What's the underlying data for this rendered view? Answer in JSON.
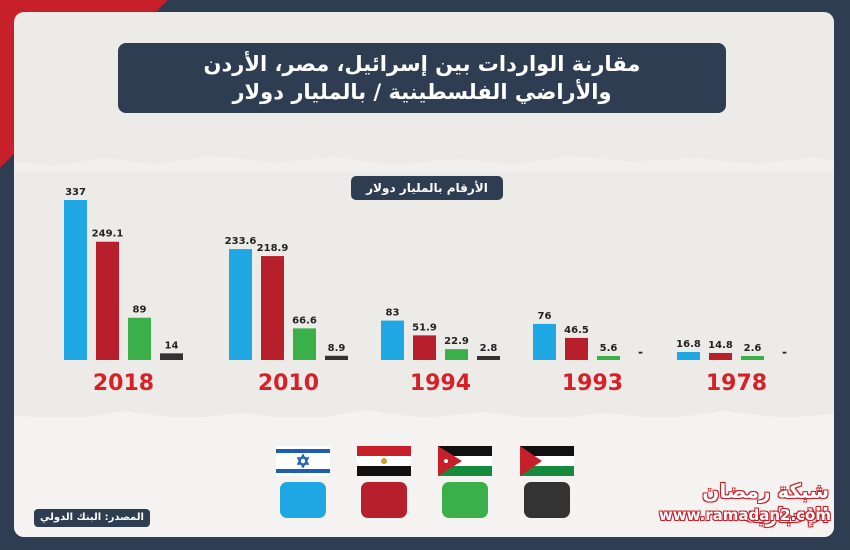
{
  "title": {
    "line1": "مقارنة الواردات بين إسرائيل، مصر، الأردن",
    "line2": "والأراضي الفلسطينية / بالمليار دولار"
  },
  "unit_label": "الأرقام بالمليار دولار",
  "source_label": "المصدر: البنك الدولي",
  "brand": {
    "name": "شبكة رمضان الإخبارية",
    "url": "www.ramadan2.com"
  },
  "colors": {
    "israel": "#1ea7e3",
    "egypt": "#b81f2d",
    "jordan": "#3bb04a",
    "palestine": "#333333",
    "year": "#d72027"
  },
  "chart_data": {
    "type": "bar",
    "categories": [
      "2018",
      "2010",
      "1994",
      "1993",
      "1978"
    ],
    "series": [
      {
        "key": "israel",
        "color": "#1ea7e3",
        "values": [
          337,
          233.6,
          83,
          76,
          16.8
        ],
        "labels": [
          "337",
          "233.6",
          "83",
          "76",
          "16.8"
        ]
      },
      {
        "key": "egypt",
        "color": "#b81f2d",
        "values": [
          249.1,
          218.9,
          51.9,
          46.5,
          14.8
        ],
        "labels": [
          "249.1",
          "218.9",
          "51.9",
          "46.5",
          "14.8"
        ]
      },
      {
        "key": "jordan",
        "color": "#3bb04a",
        "values": [
          89,
          66.6,
          22.9,
          5.6,
          2.6
        ],
        "labels": [
          "89",
          "66.6",
          "22.9",
          "5.6",
          "2.6"
        ]
      },
      {
        "key": "palestine",
        "color": "#333333",
        "values": [
          14,
          8.9,
          2.8,
          null,
          null
        ],
        "labels": [
          "14",
          "8.9",
          "2.8",
          "-",
          "-"
        ]
      }
    ],
    "ylim": [
      0,
      337
    ],
    "grid": false
  }
}
